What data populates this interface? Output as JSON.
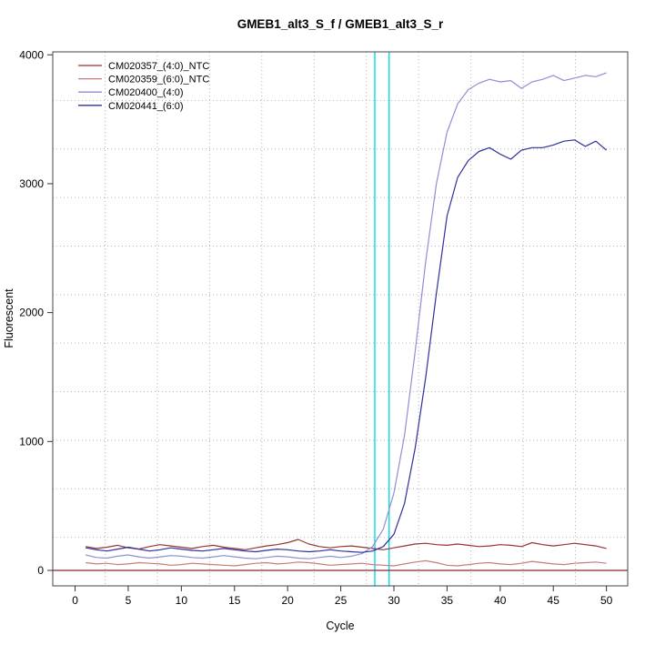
{
  "chart_data": {
    "type": "line",
    "title": "GMEB1_alt3_S_f / GMEB1_alt3_S_r",
    "xlabel": "Cycle",
    "ylabel": "Fluorescent",
    "x_ticks": [
      0,
      5,
      10,
      15,
      20,
      25,
      30,
      35,
      40,
      45,
      50
    ],
    "y_ticks": [
      0,
      1000,
      2000,
      3000,
      4000
    ],
    "xlim": [
      -2.1,
      52.0
    ],
    "ylim": [
      -120,
      4023
    ],
    "grid": {
      "nx": 11,
      "ny": 11,
      "style": "dotted",
      "color": "#b3b3b3"
    },
    "legend_position": "top-left",
    "threshold_lines": {
      "color": "#00dde8",
      "cycles": [
        28.2,
        29.55
      ]
    },
    "baseline_line": {
      "color": "#8b2626",
      "value": 0
    },
    "x": [
      1,
      2,
      3,
      4,
      5,
      6,
      7,
      8,
      9,
      10,
      11,
      12,
      13,
      14,
      15,
      16,
      17,
      18,
      19,
      20,
      21,
      22,
      23,
      24,
      25,
      26,
      27,
      28,
      29,
      30,
      31,
      32,
      33,
      34,
      35,
      36,
      37,
      38,
      39,
      40,
      41,
      42,
      43,
      44,
      45,
      46,
      47,
      48,
      49,
      50
    ],
    "series": [
      {
        "name": "CM020357_(4:0)_NTC",
        "color": "#993333",
        "values": [
          185,
          170,
          180,
          195,
          175,
          165,
          185,
          200,
          190,
          180,
          170,
          185,
          195,
          180,
          170,
          160,
          175,
          190,
          200,
          215,
          240,
          205,
          185,
          175,
          185,
          190,
          180,
          170,
          160,
          175,
          190,
          205,
          210,
          200,
          195,
          205,
          195,
          185,
          190,
          200,
          195,
          185,
          215,
          200,
          190,
          200,
          210,
          200,
          190,
          170
        ]
      },
      {
        "name": "CM020359_(6:0)_NTC",
        "color": "#cc7a7a",
        "values": [
          60,
          50,
          55,
          45,
          50,
          60,
          55,
          50,
          40,
          45,
          55,
          50,
          45,
          40,
          35,
          45,
          55,
          60,
          50,
          55,
          65,
          60,
          50,
          40,
          45,
          50,
          55,
          45,
          40,
          35,
          50,
          65,
          75,
          60,
          40,
          35,
          45,
          55,
          60,
          50,
          45,
          55,
          70,
          60,
          50,
          45,
          55,
          60,
          65,
          55
        ]
      },
      {
        "name": "CM020400_(4:0)",
        "color": "#8f8fd4",
        "values": [
          120,
          100,
          95,
          110,
          120,
          105,
          95,
          105,
          115,
          110,
          100,
          95,
          105,
          115,
          105,
          95,
          90,
          100,
          110,
          105,
          95,
          90,
          100,
          110,
          100,
          110,
          130,
          185,
          320,
          600,
          1050,
          1700,
          2400,
          3000,
          3400,
          3620,
          3730,
          3780,
          3810,
          3790,
          3800,
          3740,
          3790,
          3810,
          3840,
          3800,
          3820,
          3840,
          3830,
          3860
        ]
      },
      {
        "name": "CM020441_(6:0)",
        "color": "#2f2f9e",
        "values": [
          175,
          160,
          150,
          165,
          180,
          165,
          150,
          160,
          175,
          165,
          155,
          150,
          160,
          170,
          160,
          150,
          145,
          155,
          165,
          160,
          150,
          145,
          150,
          160,
          150,
          145,
          140,
          150,
          185,
          280,
          520,
          950,
          1500,
          2150,
          2750,
          3050,
          3180,
          3250,
          3280,
          3230,
          3190,
          3260,
          3280,
          3280,
          3300,
          3330,
          3340,
          3290,
          3330,
          3260
        ]
      }
    ]
  }
}
